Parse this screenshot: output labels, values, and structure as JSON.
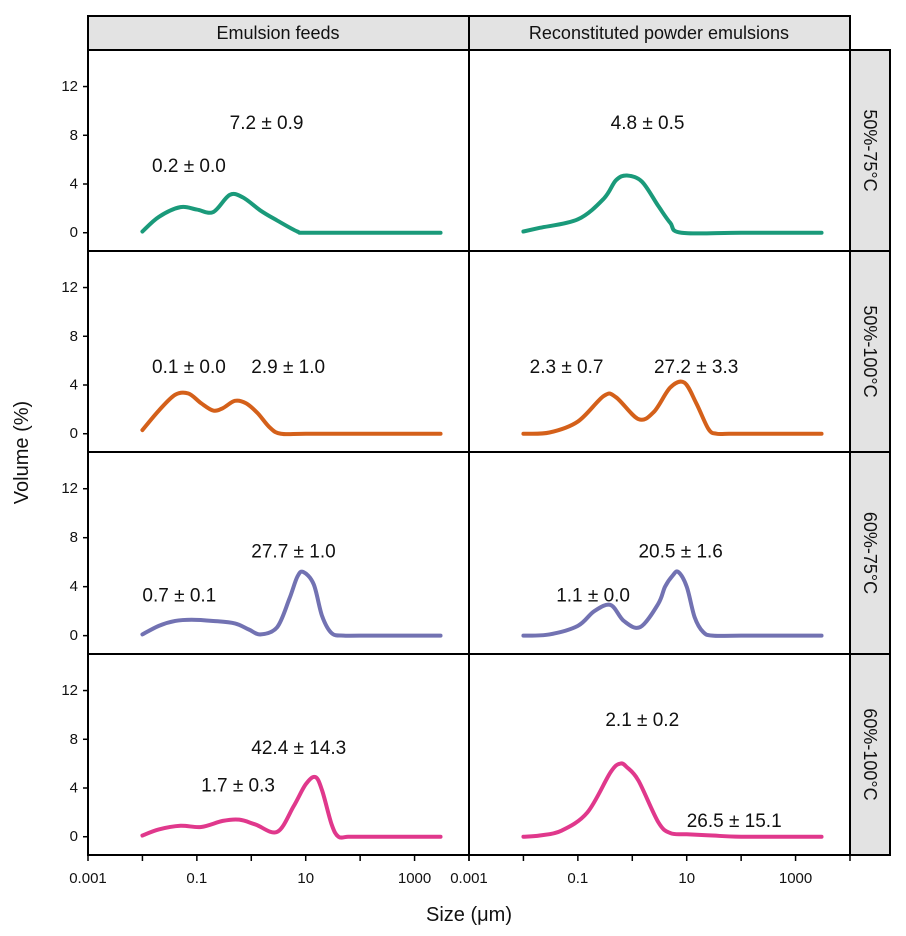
{
  "chart_data": {
    "type": "line",
    "layout": "facet grid, 4 rows x 2 columns",
    "xlabel": "Size (μm)",
    "ylabel": "Volume (%)",
    "x_scale": "log10",
    "xlim": [
      0.001,
      10000
    ],
    "ylim": [
      -1.5,
      15
    ],
    "x_ticks": [
      {
        "value": 0.001,
        "label": "0.001"
      },
      {
        "value": 0.1,
        "label": "0.1"
      },
      {
        "value": 10,
        "label": "10"
      },
      {
        "value": 1000,
        "label": "1000"
      }
    ],
    "y_ticks": [
      {
        "value": 0,
        "label": "0"
      },
      {
        "value": 4,
        "label": "4"
      },
      {
        "value": 8,
        "label": "8"
      },
      {
        "value": 12,
        "label": "12"
      }
    ],
    "columns": [
      "Emulsion feeds",
      "Reconstituted powder emulsions"
    ],
    "rows": [
      "50%-75°C",
      "50%-100°C",
      "60%-75°C",
      "60%-100°C"
    ],
    "row_colors": [
      "#1a9a7a",
      "#d4601a",
      "#7272b2",
      "#e0388c"
    ],
    "panels": [
      {
        "row": 0,
        "col": 0,
        "x": [
          0.01,
          0.02,
          0.05,
          0.1,
          0.2,
          0.4,
          0.7,
          1.5,
          3,
          7,
          10,
          100,
          3000
        ],
        "y": [
          0.1,
          1.3,
          2.1,
          1.9,
          1.7,
          3.1,
          2.9,
          1.8,
          1.0,
          0.1,
          0,
          0,
          0
        ],
        "annotations": [
          {
            "text": "0.2 ± 0.0",
            "x": 0.015,
            "y": 5.0
          },
          {
            "text": "7.2 ± 0.9",
            "x": 0.4,
            "y": 8.5
          }
        ]
      },
      {
        "row": 0,
        "col": 1,
        "x": [
          0.01,
          0.02,
          0.1,
          0.3,
          0.5,
          0.8,
          1.5,
          3,
          5,
          8,
          100,
          3000
        ],
        "y": [
          0.1,
          0.4,
          1.1,
          2.8,
          4.3,
          4.7,
          4.2,
          2.2,
          0.8,
          0,
          0,
          0
        ],
        "annotations": [
          {
            "text": "4.8 ± 0.5",
            "x": 0.4,
            "y": 8.5
          }
        ]
      },
      {
        "row": 1,
        "col": 0,
        "x": [
          0.01,
          0.02,
          0.04,
          0.07,
          0.12,
          0.2,
          0.3,
          0.5,
          0.8,
          1.3,
          2.2,
          3.5,
          10,
          100,
          3000
        ],
        "y": [
          0.3,
          1.9,
          3.2,
          3.3,
          2.5,
          1.9,
          2.1,
          2.7,
          2.5,
          1.7,
          0.5,
          0,
          0,
          0,
          0
        ],
        "annotations": [
          {
            "text": "0.1 ± 0.0",
            "x": 0.015,
            "y": 5.0
          },
          {
            "text": "2.9 ± 1.0",
            "x": 1.0,
            "y": 5.0
          }
        ]
      },
      {
        "row": 1,
        "col": 1,
        "x": [
          0.01,
          0.03,
          0.1,
          0.3,
          0.5,
          1.3,
          2.5,
          5,
          9,
          15,
          25,
          35,
          60,
          100,
          3000
        ],
        "y": [
          0,
          0.1,
          1.0,
          3.1,
          3.0,
          1.2,
          1.8,
          3.8,
          4.2,
          2.5,
          0.4,
          0,
          0,
          0,
          0
        ],
        "annotations": [
          {
            "text": "2.3 ± 0.7",
            "x": 0.013,
            "y": 5.0
          },
          {
            "text": "27.2 ± 3.3",
            "x": 2.5,
            "y": 5.0
          }
        ]
      },
      {
        "row": 2,
        "col": 0,
        "x": [
          0.01,
          0.02,
          0.04,
          0.08,
          0.2,
          0.5,
          0.9,
          1.5,
          3,
          5,
          7,
          9,
          14,
          20,
          30,
          50,
          100,
          3000
        ],
        "y": [
          0.1,
          0.8,
          1.2,
          1.3,
          1.2,
          1.0,
          0.5,
          0.1,
          0.7,
          3.0,
          4.8,
          5.2,
          4.2,
          1.6,
          0.2,
          0,
          0,
          0
        ],
        "annotations": [
          {
            "text": "0.7 ± 0.1",
            "x": 0.01,
            "y": 2.8
          },
          {
            "text": "27.7 ± 1.0",
            "x": 1.0,
            "y": 6.4
          }
        ]
      },
      {
        "row": 2,
        "col": 1,
        "x": [
          0.01,
          0.03,
          0.1,
          0.2,
          0.4,
          0.7,
          1.4,
          3,
          4,
          5.5,
          7,
          10,
          14,
          20,
          30,
          100,
          3000
        ],
        "y": [
          0,
          0.1,
          0.8,
          2.0,
          2.5,
          1.2,
          0.7,
          2.6,
          4.0,
          4.9,
          5.2,
          4.0,
          1.5,
          0.3,
          0,
          0,
          0
        ],
        "annotations": [
          {
            "text": "1.1 ± 0.0",
            "x": 0.04,
            "y": 2.8
          },
          {
            "text": "20.5 ± 1.6",
            "x": 1.3,
            "y": 6.4
          }
        ]
      },
      {
        "row": 3,
        "col": 0,
        "x": [
          0.01,
          0.02,
          0.05,
          0.12,
          0.3,
          0.6,
          1.2,
          3,
          6,
          10,
          15,
          20,
          30,
          40,
          60,
          100,
          3000
        ],
        "y": [
          0.1,
          0.6,
          0.9,
          0.8,
          1.3,
          1.4,
          1.0,
          0.4,
          2.5,
          4.3,
          4.9,
          3.8,
          1.0,
          0,
          0,
          0,
          0
        ],
        "annotations": [
          {
            "text": "1.7 ± 0.3",
            "x": 0.12,
            "y": 3.7
          },
          {
            "text": "42.4 ± 14.3",
            "x": 1.0,
            "y": 6.8
          }
        ]
      },
      {
        "row": 3,
        "col": 1,
        "x": [
          0.01,
          0.02,
          0.05,
          0.15,
          0.4,
          0.6,
          0.8,
          1.3,
          3,
          5,
          10,
          30,
          100,
          3000
        ],
        "y": [
          0,
          0.1,
          0.5,
          2.0,
          5.3,
          6.0,
          5.7,
          4.6,
          1.2,
          0.3,
          0.2,
          0.1,
          0,
          0
        ],
        "annotations": [
          {
            "text": "2.1 ± 0.2",
            "x": 0.32,
            "y": 9.1
          },
          {
            "text": "26.5 ± 15.1",
            "x": 10,
            "y": 0.8
          }
        ]
      }
    ]
  }
}
